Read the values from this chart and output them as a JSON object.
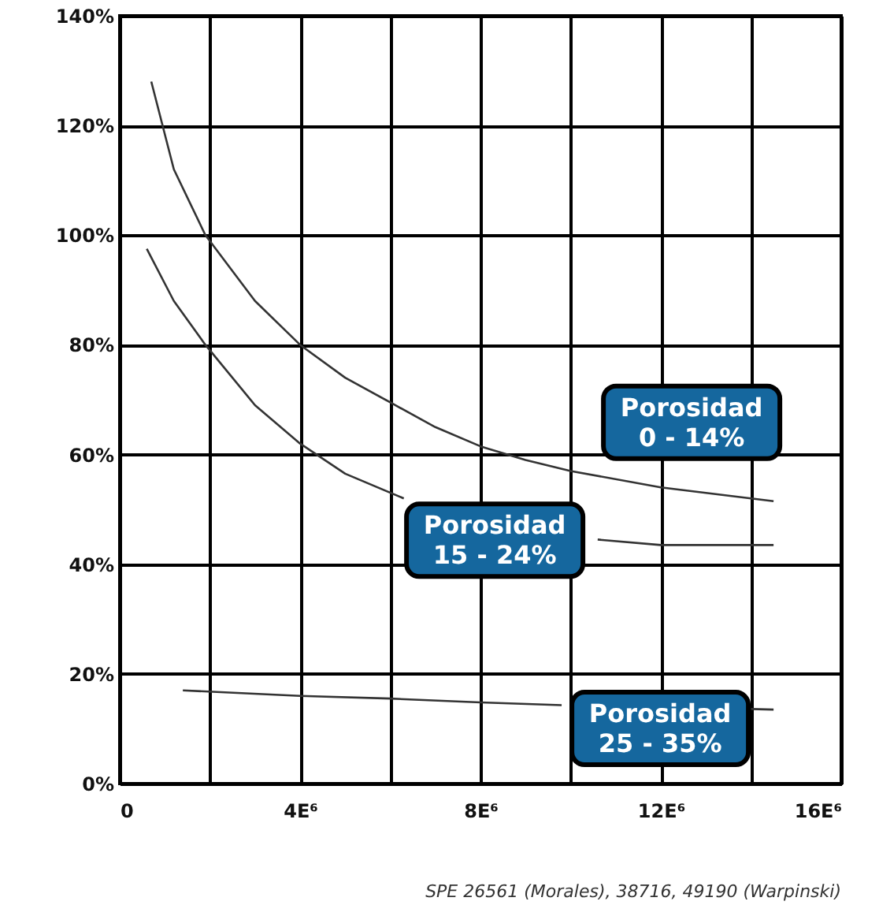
{
  "chart_data": {
    "type": "line",
    "series": [
      {
        "name": "Porosidad\n0 - 14%",
        "color": "#333333",
        "x": [
          0.7,
          1.2,
          1.9,
          3,
          4,
          5,
          6,
          7,
          8,
          9,
          10,
          12,
          14.5
        ],
        "values": [
          128,
          112,
          100,
          88,
          80,
          74,
          69.5,
          65,
          61.5,
          59,
          57,
          54,
          51.5
        ]
      },
      {
        "name": "Porosidad\n15 - 24%",
        "color": "#333333",
        "x": [
          0.6,
          1.2,
          1.9,
          3,
          4,
          5,
          6.3,
          7,
          8,
          9,
          10.6,
          12,
          14.5
        ],
        "values": [
          97.5,
          88,
          80,
          69,
          62,
          56.5,
          52,
          null,
          null,
          null,
          44.5,
          43.5,
          43.5
        ]
      },
      {
        "name": "Porosidad\n25 - 35%",
        "color": "#333333",
        "x": [
          1.4,
          4,
          6,
          8,
          9.8,
          12,
          14,
          14.5
        ],
        "values": [
          17,
          16,
          15.5,
          14.8,
          14.3,
          null,
          13.6,
          13.5
        ]
      }
    ],
    "xlim": [
      0,
      16
    ],
    "xticks": [
      {
        "value": 0,
        "label": "0"
      },
      {
        "value": 2,
        "label": null
      },
      {
        "value": 4,
        "label": "4E⁶"
      },
      {
        "value": 6,
        "label": null
      },
      {
        "value": 8,
        "label": "8E⁶"
      },
      {
        "value": 10,
        "label": null
      },
      {
        "value": 12,
        "label": "12E⁶"
      },
      {
        "value": 14,
        "label": null
      },
      {
        "value": 16,
        "label": "16E⁶"
      }
    ],
    "ylim": [
      0,
      140
    ],
    "yticks": [
      {
        "value": 0,
        "label": "0%"
      },
      {
        "value": 20,
        "label": "20%"
      },
      {
        "value": 40,
        "label": "40%"
      },
      {
        "value": 60,
        "label": "60%"
      },
      {
        "value": 80,
        "label": "80%"
      },
      {
        "value": 100,
        "label": "100%"
      },
      {
        "value": 120,
        "label": "120%"
      },
      {
        "value": 140,
        "label": "140%"
      }
    ],
    "grid": true,
    "line_style": "solid",
    "annotations": [
      "SPE 26561 (Morales), 38716, 49190 (Warpinski)"
    ]
  }
}
